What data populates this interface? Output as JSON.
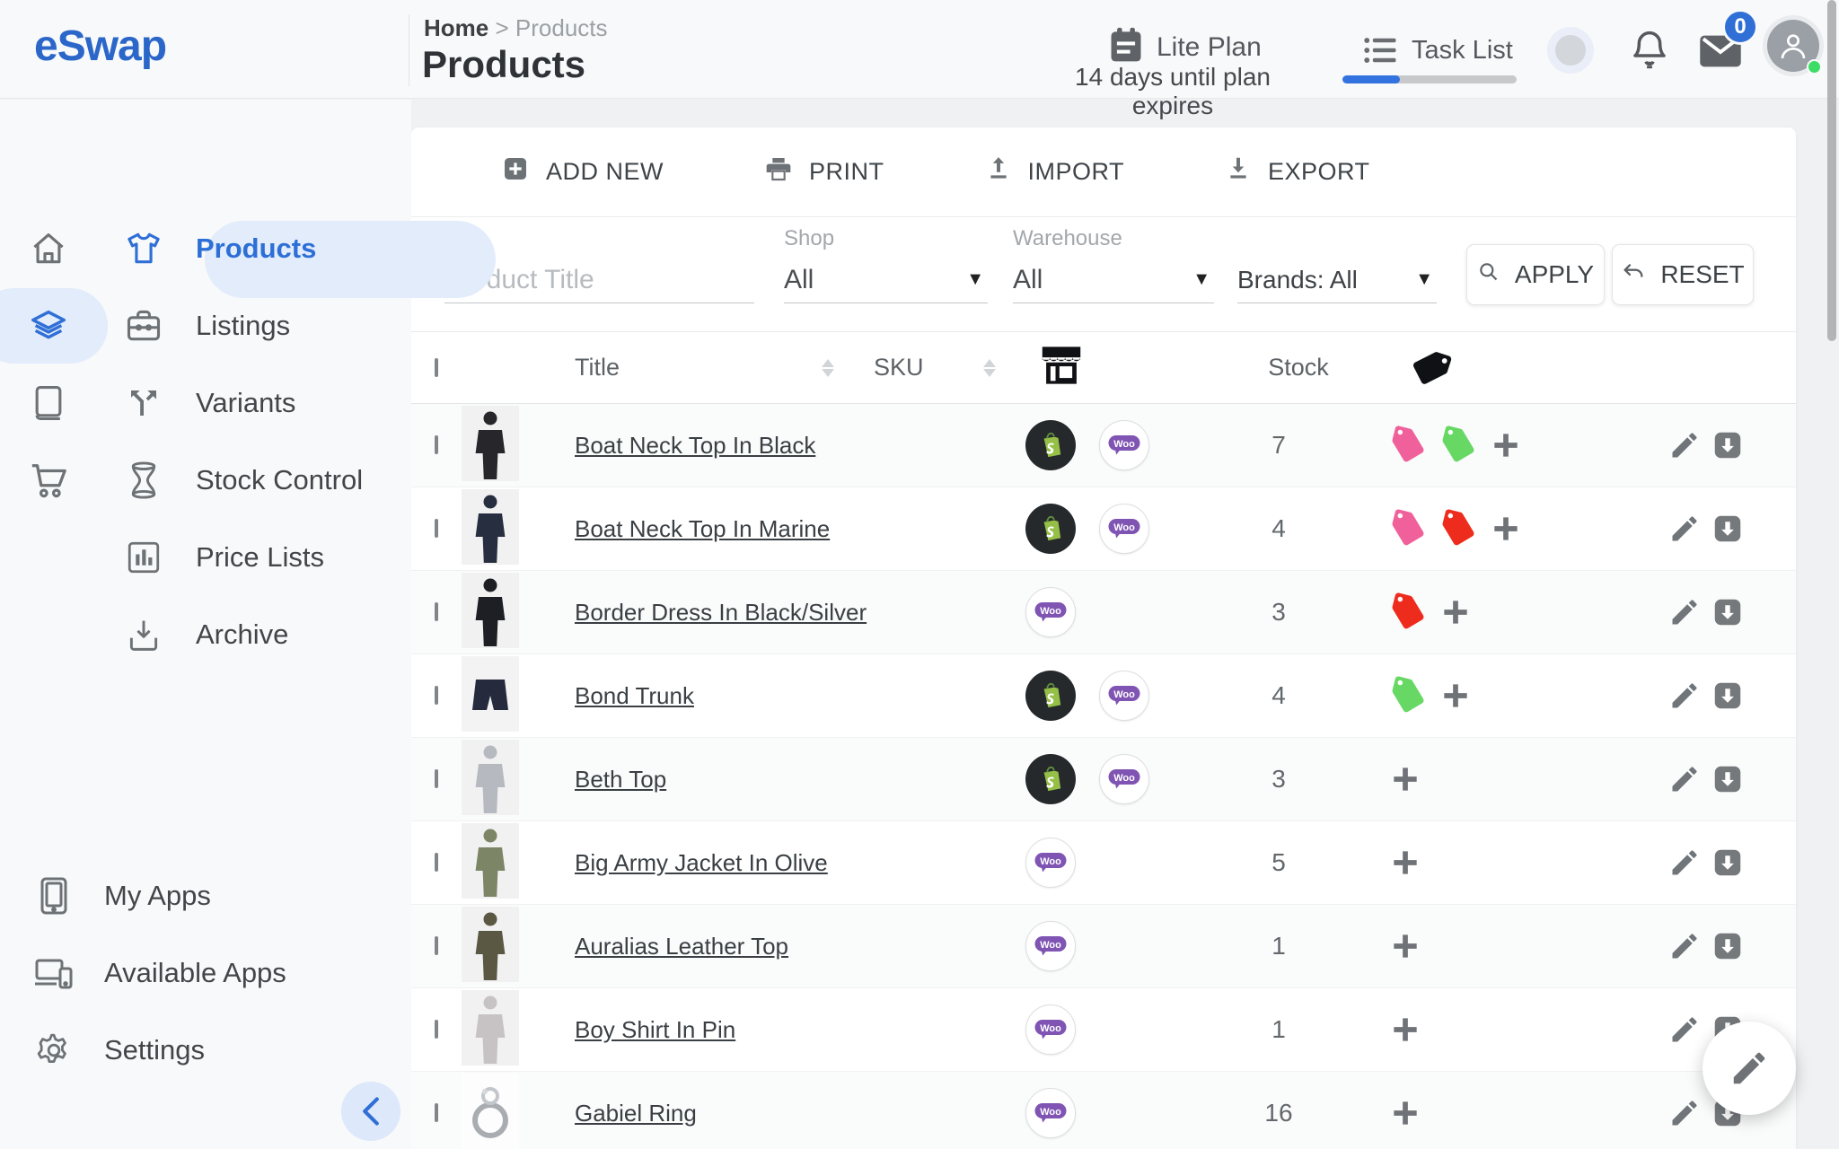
{
  "brand": {
    "logo_text": "eSwap"
  },
  "header": {
    "breadcrumb": {
      "home": "Home",
      "separator": ">",
      "current": "Products"
    },
    "page_title": "Products",
    "plan": {
      "name": "Lite Plan",
      "note": "14 days until plan expires"
    },
    "task_list": {
      "label": "Task List",
      "progress_percent": 33
    },
    "mail_badge_count": "0"
  },
  "sidebar": {
    "items": [
      {
        "label": "Products",
        "active": true
      },
      {
        "label": "Listings",
        "active": false
      },
      {
        "label": "Variants",
        "active": false
      },
      {
        "label": "Stock Control",
        "active": false
      },
      {
        "label": "Price Lists",
        "active": false
      },
      {
        "label": "Archive",
        "active": false
      }
    ],
    "bottom_items": [
      {
        "label": "My Apps"
      },
      {
        "label": "Available Apps"
      },
      {
        "label": "Settings"
      }
    ]
  },
  "toolbar": {
    "add_new": "ADD NEW",
    "print": "PRINT",
    "import": "IMPORT",
    "export": "EXPORT"
  },
  "filters": {
    "product_title_placeholder": "Product Title",
    "shop_label": "Shop",
    "shop_value": "All",
    "warehouse_label": "Warehouse",
    "warehouse_value": "All",
    "brands_value": "Brands: All",
    "apply": "APPLY",
    "reset": "RESET"
  },
  "table": {
    "headers": {
      "title": "Title",
      "sku": "SKU",
      "stock": "Stock"
    },
    "rows": [
      {
        "title": "Boat Neck Top In Black",
        "channels": [
          "shopify",
          "woo"
        ],
        "stock": "7",
        "tags": [
          "#f0609a",
          "#67d863"
        ],
        "photo": {
          "kind": "person",
          "tone": "#26262b"
        }
      },
      {
        "title": "Boat Neck Top In Marine",
        "channels": [
          "shopify",
          "woo"
        ],
        "stock": "4",
        "tags": [
          "#f0609a",
          "#ee2c1e"
        ],
        "photo": {
          "kind": "person",
          "tone": "#272e40"
        }
      },
      {
        "title": "Border Dress In Black/Silver",
        "channels": [
          "woo"
        ],
        "stock": "3",
        "tags": [
          "#ee2c1e"
        ],
        "photo": {
          "kind": "person",
          "tone": "#1d1f24"
        }
      },
      {
        "title": "Bond Trunk",
        "channels": [
          "shopify",
          "woo"
        ],
        "stock": "4",
        "tags": [
          "#67d863"
        ],
        "photo": {
          "kind": "shorts",
          "tone": "#252b3d"
        }
      },
      {
        "title": "Beth Top",
        "channels": [
          "shopify",
          "woo"
        ],
        "stock": "3",
        "tags": [],
        "photo": {
          "kind": "person",
          "tone": "#b6bac0"
        }
      },
      {
        "title": "Big Army Jacket In Olive",
        "channels": [
          "woo"
        ],
        "stock": "5",
        "tags": [],
        "photo": {
          "kind": "person",
          "tone": "#7c8566"
        }
      },
      {
        "title": "Auralias Leather Top",
        "channels": [
          "woo"
        ],
        "stock": "1",
        "tags": [],
        "photo": {
          "kind": "person",
          "tone": "#5a5743"
        }
      },
      {
        "title": "Boy Shirt In Pin",
        "channels": [
          "woo"
        ],
        "stock": "1",
        "tags": [],
        "photo": {
          "kind": "person",
          "tone": "#c7c3c4"
        }
      },
      {
        "title": "Gabiel Ring",
        "channels": [
          "woo"
        ],
        "stock": "16",
        "tags": [],
        "photo": {
          "kind": "ring",
          "tone": "#a9adb2"
        }
      }
    ]
  },
  "colors": {
    "accent_blue": "#2e6fd3",
    "shopify_green": "#95bf47",
    "woo_purple": "#7f54b3",
    "tag_pink": "#f0609a",
    "tag_green": "#67d863",
    "tag_red": "#ee2c1e"
  }
}
